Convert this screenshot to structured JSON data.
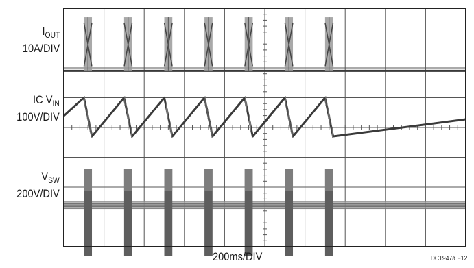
{
  "chart_data": {
    "type": "oscilloscope",
    "x_scale": "200ms/DIV",
    "figure_id": "DC1947a F12",
    "grid": {
      "divisions_x": 10,
      "divisions_y": 8,
      "show": true
    },
    "burst_centers_div": [
      0.6,
      1.6,
      2.6,
      3.6,
      4.6,
      5.6,
      6.6
    ],
    "burst_width_div": 0.2,
    "traces": [
      {
        "id": "iout",
        "name_main": "I",
        "name_sub": "OUT",
        "scale": "10A/DIV",
        "baseline_div": 2.1,
        "burst_peak_div": 0.3,
        "color": "#3a3a3a"
      },
      {
        "id": "icvin",
        "name_main": "IC V",
        "name_sub": "IN",
        "scale": "100V/DIV",
        "low_div": 4.3,
        "high_div": 3.0,
        "color": "#3a3a3a"
      },
      {
        "id": "vsw",
        "name_main": "V",
        "name_sub": "SW",
        "scale": "200V/DIV",
        "band_center_div": 6.6,
        "burst_top_div": 5.4,
        "burst_bottom_div": 8.3,
        "color": "#3a3a3a"
      }
    ]
  }
}
